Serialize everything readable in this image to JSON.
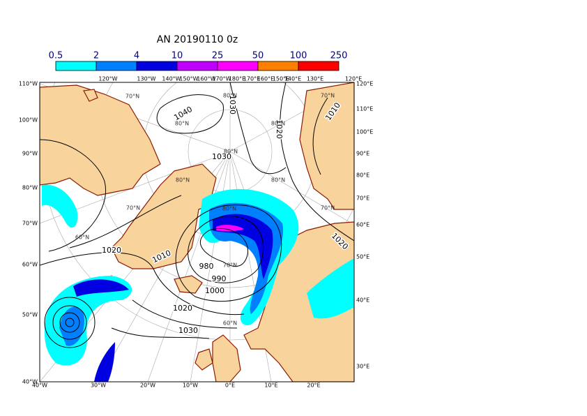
{
  "title": "AN  20190110 0z",
  "colorbar": {
    "ticks": [
      0.5,
      2,
      4,
      10,
      25,
      50,
      100,
      250
    ],
    "colors": [
      "#00ffff",
      "#0080ff",
      "#0000e0",
      "#c000ff",
      "#ff00ff",
      "#ff8000",
      "#ff0000"
    ]
  },
  "left_labels": [
    "110°W",
    "100°W",
    "90°W",
    "80°W",
    "70°W",
    "60°W",
    "50°W",
    "40°W"
  ],
  "right_labels": [
    "120°E",
    "110°E",
    "100°E",
    "90°E",
    "80°E",
    "70°E",
    "60°E",
    "50°E",
    "40°E",
    "30°E"
  ],
  "bottom_labels": [
    "40°W",
    "30°W",
    "20°W",
    "10°W",
    "0°E",
    "10°E",
    "20°E"
  ],
  "top_labels": [
    "120°W",
    "130°W",
    "140°W",
    "150°W",
    "160°W",
    "170°W",
    "180°E",
    "170°E",
    "160°E",
    "150°E",
    "140°E",
    "130°E",
    "120°E"
  ],
  "contour_labels": [
    "1040",
    "1030",
    "1020",
    "1010",
    "1030",
    "1020",
    "1010",
    "980",
    "990",
    "1000",
    "1020",
    "1030",
    "1020"
  ],
  "lat_labels": [
    "70°N",
    "80°N",
    "80°N",
    "80°N",
    "70°N",
    "60°N",
    "80°N",
    "70°N",
    "60°N",
    "80°N",
    "80°N",
    "70°N",
    "70°N",
    "80°N"
  ]
}
